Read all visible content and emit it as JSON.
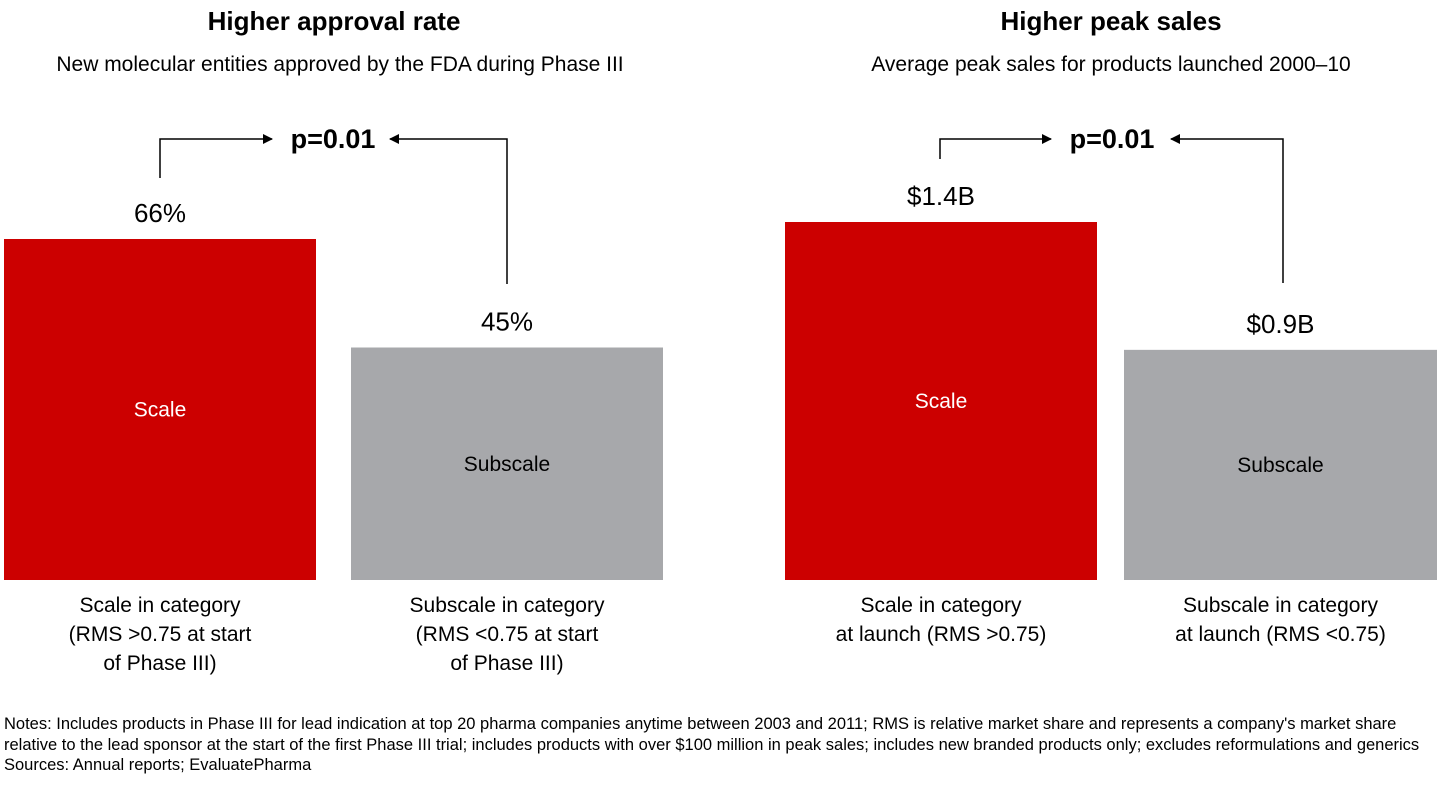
{
  "colors": {
    "scale": "#cc0000",
    "subscale": "#a7a8ab",
    "text": "#000000",
    "bar_text_light": "#ffffff"
  },
  "chart_data": [
    {
      "type": "bar",
      "title": "Higher approval rate",
      "subtitle": "New molecular entities approved by the FDA during Phase III",
      "categories": [
        "Scale in category\n(RMS >0.75 at start\nof Phase III)",
        "Subscale in category\n(RMS <0.75 at start\nof Phase III)"
      ],
      "bar_labels": [
        "Scale",
        "Subscale"
      ],
      "values": [
        66,
        45
      ],
      "value_labels": [
        "66%",
        "45%"
      ],
      "unit": "%",
      "significance": "p=0.01",
      "ylim": [
        0,
        66
      ],
      "grid": false,
      "legend": "none"
    },
    {
      "type": "bar",
      "title": "Higher peak sales",
      "subtitle": "Average peak sales for products launched 2000–10",
      "categories": [
        "Scale in category\nat launch (RMS >0.75)",
        "Subscale in category\nat launch (RMS <0.75)"
      ],
      "bar_labels": [
        "Scale",
        "Subscale"
      ],
      "values": [
        1.4,
        0.9
      ],
      "value_labels": [
        "$1.4B",
        "$0.9B"
      ],
      "unit": "$B",
      "significance": "p=0.01",
      "ylim": [
        0,
        1.4
      ],
      "grid": false,
      "legend": "none"
    }
  ],
  "footer": {
    "notes": "Notes: Includes products in Phase III for lead indication at top 20 pharma companies anytime between 2003 and 2011; RMS is relative market share and represents a company's market share relative to the lead sponsor at the start of the first Phase III trial; includes products with over $100 million in peak sales; includes new branded products only; excludes reformulations and generics",
    "sources": "Sources: Annual reports; EvaluatePharma"
  }
}
